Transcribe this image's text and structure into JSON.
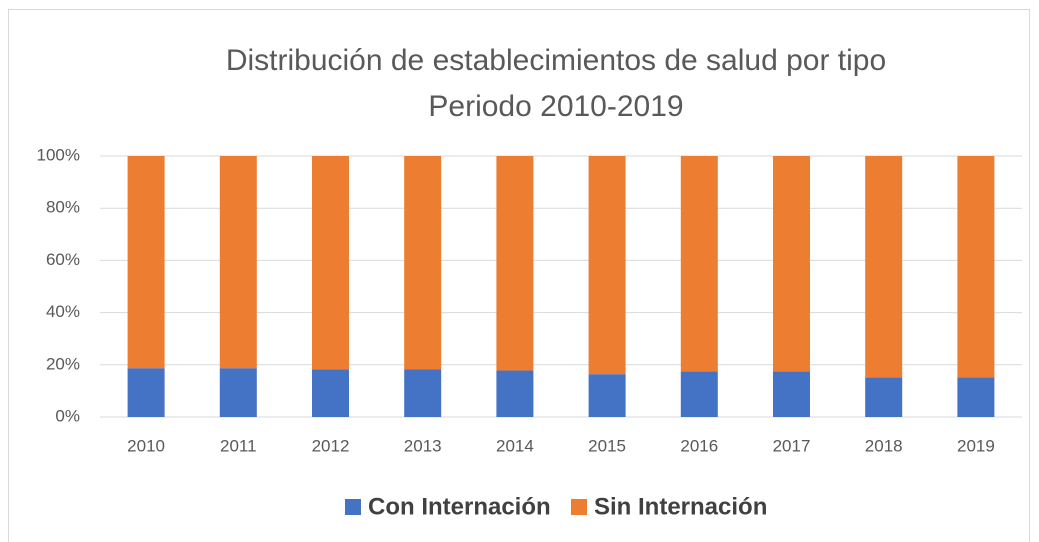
{
  "chart_data": {
    "type": "stacked_bar",
    "title": "Distribución de establecimientos de salud por tipo",
    "subtitle": "Periodo 2010-2019",
    "categories": [
      "2010",
      "2011",
      "2012",
      "2013",
      "2014",
      "2015",
      "2016",
      "2017",
      "2018",
      "2019"
    ],
    "series": [
      {
        "name": "Con Internación",
        "color": "#4472c4",
        "values": [
          18.7,
          18.7,
          18.3,
          18.2,
          17.8,
          16.4,
          17.5,
          17.5,
          15.2,
          15.2
        ]
      },
      {
        "name": "Sin Internación",
        "color": "#ed7d31",
        "values": [
          81.3,
          81.3,
          81.7,
          81.8,
          82.2,
          83.6,
          82.5,
          82.5,
          84.8,
          84.8
        ]
      }
    ],
    "ylim": [
      0,
      100
    ],
    "yticks": [
      {
        "value": 0,
        "label": "0%"
      },
      {
        "value": 20,
        "label": "20%"
      },
      {
        "value": 40,
        "label": "40%"
      },
      {
        "value": 60,
        "label": "60%"
      },
      {
        "value": 80,
        "label": "80%"
      },
      {
        "value": 100,
        "label": "100%"
      }
    ],
    "grid": true,
    "legend": "bottom"
  }
}
